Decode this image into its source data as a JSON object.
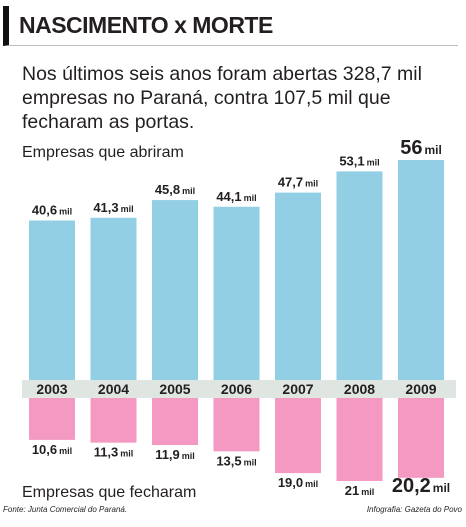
{
  "title": "NASCIMENTO x MORTE",
  "subtitle": "Nos últimos seis anos foram abertas 328,7 mil empresas no Paraná, contra 107,5 mil que fecharam as portas.",
  "source": "Fonte: Junta Comercial do Paraná.",
  "credit": "Infografia: Gazeta do Povo",
  "colors": {
    "opened": "#92cfe5",
    "closed": "#f49ac2",
    "band": "#dfe6e1"
  },
  "chart_data": {
    "type": "bar",
    "categories": [
      "2003",
      "2004",
      "2005",
      "2006",
      "2007",
      "2008",
      "2009"
    ],
    "unit": "mil",
    "series": [
      {
        "name": "Empresas que abriram",
        "values": [
          40.6,
          41.3,
          45.8,
          44.1,
          47.7,
          53.1,
          56
        ],
        "labels": [
          "40,6",
          "41,3",
          "45,8",
          "44,1",
          "47,7",
          "53,1",
          "56"
        ]
      },
      {
        "name": "Empresas que fecharam",
        "values": [
          10.6,
          11.3,
          11.9,
          13.5,
          19.0,
          21,
          20.2
        ],
        "labels": [
          "10,6",
          "11,3",
          "11,9",
          "13,5",
          "19,0",
          "21",
          "20,2"
        ]
      }
    ]
  }
}
